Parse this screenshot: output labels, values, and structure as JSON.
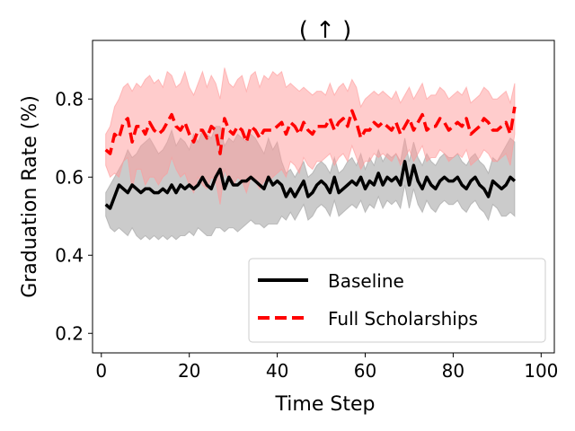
{
  "chart_data": {
    "type": "line",
    "title": "( ↑ )",
    "xlabel": "Time Step",
    "ylabel": "Graduation Rate (%)",
    "xlim": [
      -2,
      103
    ],
    "ylim": [
      0.15,
      0.95
    ],
    "xticks": [
      0,
      20,
      40,
      60,
      80,
      100
    ],
    "yticks": [
      0.2,
      0.4,
      0.6,
      0.8
    ],
    "xtick_labels": [
      "0",
      "20",
      "40",
      "60",
      "80",
      "100"
    ],
    "ytick_labels": [
      "0.2",
      "0.4",
      "0.6",
      "0.8"
    ],
    "grid": false,
    "legend_position": "lower-right",
    "colors": {
      "baseline": "#000000",
      "baseline_band": "#a0a0a0",
      "scholarship": "#ff0000",
      "scholarship_band": "#ff9a9a"
    },
    "series": [
      {
        "name": "Baseline",
        "style": "solid",
        "x": [
          1,
          2,
          3,
          4,
          5,
          6,
          7,
          8,
          9,
          10,
          11,
          12,
          13,
          14,
          15,
          16,
          17,
          18,
          19,
          20,
          21,
          22,
          23,
          24,
          25,
          26,
          27,
          28,
          29,
          30,
          31,
          32,
          33,
          34,
          35,
          36,
          37,
          38,
          39,
          40,
          41,
          42,
          43,
          44,
          45,
          46,
          47,
          48,
          49,
          50,
          51,
          52,
          53,
          54,
          55,
          56,
          57,
          58,
          59,
          60,
          61,
          62,
          63,
          64,
          65,
          66,
          67,
          68,
          69,
          70,
          71,
          72,
          73,
          74,
          75,
          76,
          77,
          78,
          79,
          80,
          81,
          82,
          83,
          84,
          85,
          86,
          87,
          88,
          89,
          90,
          91,
          92,
          93,
          94
        ],
        "values": [
          0.53,
          0.52,
          0.55,
          0.58,
          0.57,
          0.56,
          0.58,
          0.57,
          0.56,
          0.57,
          0.57,
          0.56,
          0.56,
          0.57,
          0.56,
          0.58,
          0.56,
          0.58,
          0.57,
          0.58,
          0.57,
          0.58,
          0.6,
          0.58,
          0.57,
          0.6,
          0.62,
          0.57,
          0.6,
          0.58,
          0.58,
          0.59,
          0.59,
          0.6,
          0.59,
          0.58,
          0.57,
          0.6,
          0.58,
          0.59,
          0.58,
          0.55,
          0.57,
          0.55,
          0.57,
          0.59,
          0.55,
          0.56,
          0.58,
          0.59,
          0.58,
          0.56,
          0.6,
          0.56,
          0.57,
          0.58,
          0.59,
          0.58,
          0.6,
          0.57,
          0.59,
          0.58,
          0.61,
          0.58,
          0.6,
          0.59,
          0.6,
          0.58,
          0.64,
          0.58,
          0.63,
          0.59,
          0.57,
          0.6,
          0.58,
          0.57,
          0.59,
          0.6,
          0.59,
          0.59,
          0.6,
          0.58,
          0.57,
          0.59,
          0.6,
          0.58,
          0.57,
          0.55,
          0.59,
          0.58,
          0.57,
          0.58,
          0.6,
          0.59
        ],
        "band_upper": [
          0.56,
          0.58,
          0.6,
          0.62,
          0.64,
          0.67,
          0.65,
          0.66,
          0.68,
          0.69,
          0.7,
          0.68,
          0.66,
          0.67,
          0.69,
          0.72,
          0.68,
          0.7,
          0.69,
          0.67,
          0.71,
          0.69,
          0.72,
          0.71,
          0.7,
          0.73,
          0.73,
          0.68,
          0.7,
          0.69,
          0.71,
          0.7,
          0.69,
          0.71,
          0.7,
          0.68,
          0.66,
          0.7,
          0.67,
          0.69,
          0.64,
          0.61,
          0.62,
          0.6,
          0.62,
          0.64,
          0.6,
          0.61,
          0.63,
          0.64,
          0.63,
          0.61,
          0.65,
          0.61,
          0.62,
          0.64,
          0.65,
          0.63,
          0.66,
          0.62,
          0.65,
          0.63,
          0.67,
          0.64,
          0.66,
          0.65,
          0.66,
          0.64,
          0.7,
          0.64,
          0.69,
          0.65,
          0.63,
          0.66,
          0.64,
          0.63,
          0.65,
          0.66,
          0.65,
          0.65,
          0.66,
          0.64,
          0.63,
          0.65,
          0.66,
          0.64,
          0.63,
          0.61,
          0.65,
          0.64,
          0.66,
          0.68,
          0.7,
          0.69
        ],
        "band_lower": [
          0.5,
          0.47,
          0.46,
          0.47,
          0.46,
          0.45,
          0.47,
          0.45,
          0.44,
          0.45,
          0.44,
          0.45,
          0.44,
          0.45,
          0.44,
          0.45,
          0.44,
          0.45,
          0.45,
          0.46,
          0.45,
          0.47,
          0.46,
          0.45,
          0.45,
          0.47,
          0.47,
          0.46,
          0.47,
          0.47,
          0.46,
          0.47,
          0.48,
          0.49,
          0.48,
          0.48,
          0.47,
          0.48,
          0.48,
          0.48,
          0.5,
          0.49,
          0.51,
          0.49,
          0.51,
          0.53,
          0.49,
          0.5,
          0.52,
          0.53,
          0.52,
          0.5,
          0.54,
          0.5,
          0.51,
          0.52,
          0.53,
          0.52,
          0.54,
          0.51,
          0.53,
          0.52,
          0.55,
          0.52,
          0.54,
          0.53,
          0.54,
          0.52,
          0.58,
          0.52,
          0.57,
          0.53,
          0.51,
          0.54,
          0.52,
          0.51,
          0.53,
          0.54,
          0.53,
          0.53,
          0.54,
          0.52,
          0.51,
          0.53,
          0.54,
          0.52,
          0.51,
          0.49,
          0.53,
          0.52,
          0.5,
          0.5,
          0.51,
          0.5
        ]
      },
      {
        "name": "Full Scholarships",
        "style": "dashed",
        "x": [
          1,
          2,
          3,
          4,
          5,
          6,
          7,
          8,
          9,
          10,
          11,
          12,
          13,
          14,
          15,
          16,
          17,
          18,
          19,
          20,
          21,
          22,
          23,
          24,
          25,
          26,
          27,
          28,
          29,
          30,
          31,
          32,
          33,
          34,
          35,
          36,
          37,
          38,
          39,
          40,
          41,
          42,
          43,
          44,
          45,
          46,
          47,
          48,
          49,
          50,
          51,
          52,
          53,
          54,
          55,
          56,
          57,
          58,
          59,
          60,
          61,
          62,
          63,
          64,
          65,
          66,
          67,
          68,
          69,
          70,
          71,
          72,
          73,
          74,
          75,
          76,
          77,
          78,
          79,
          80,
          81,
          82,
          83,
          84,
          85,
          86,
          87,
          88,
          89,
          90,
          91,
          92,
          93,
          94
        ],
        "values": [
          0.67,
          0.66,
          0.71,
          0.7,
          0.74,
          0.75,
          0.69,
          0.73,
          0.73,
          0.71,
          0.74,
          0.72,
          0.71,
          0.72,
          0.74,
          0.76,
          0.73,
          0.72,
          0.74,
          0.71,
          0.69,
          0.72,
          0.72,
          0.7,
          0.73,
          0.72,
          0.66,
          0.75,
          0.72,
          0.71,
          0.73,
          0.72,
          0.69,
          0.73,
          0.72,
          0.7,
          0.72,
          0.72,
          0.72,
          0.73,
          0.74,
          0.71,
          0.74,
          0.73,
          0.71,
          0.74,
          0.72,
          0.71,
          0.73,
          0.73,
          0.73,
          0.75,
          0.72,
          0.74,
          0.75,
          0.73,
          0.77,
          0.74,
          0.7,
          0.72,
          0.72,
          0.74,
          0.73,
          0.74,
          0.73,
          0.72,
          0.74,
          0.71,
          0.73,
          0.75,
          0.72,
          0.74,
          0.76,
          0.72,
          0.73,
          0.73,
          0.75,
          0.74,
          0.72,
          0.73,
          0.74,
          0.73,
          0.75,
          0.71,
          0.72,
          0.73,
          0.75,
          0.74,
          0.72,
          0.72,
          0.73,
          0.74,
          0.71,
          0.78
        ],
        "band_upper": [
          0.71,
          0.73,
          0.78,
          0.8,
          0.83,
          0.84,
          0.82,
          0.84,
          0.83,
          0.85,
          0.86,
          0.84,
          0.85,
          0.83,
          0.87,
          0.86,
          0.83,
          0.84,
          0.87,
          0.83,
          0.81,
          0.84,
          0.87,
          0.83,
          0.86,
          0.84,
          0.8,
          0.88,
          0.84,
          0.83,
          0.85,
          0.86,
          0.82,
          0.86,
          0.87,
          0.83,
          0.86,
          0.85,
          0.87,
          0.86,
          0.87,
          0.83,
          0.84,
          0.83,
          0.82,
          0.83,
          0.82,
          0.81,
          0.82,
          0.82,
          0.81,
          0.84,
          0.81,
          0.83,
          0.84,
          0.82,
          0.85,
          0.83,
          0.78,
          0.8,
          0.81,
          0.82,
          0.81,
          0.82,
          0.81,
          0.8,
          0.82,
          0.79,
          0.81,
          0.83,
          0.8,
          0.82,
          0.84,
          0.8,
          0.81,
          0.81,
          0.83,
          0.82,
          0.8,
          0.81,
          0.82,
          0.81,
          0.83,
          0.79,
          0.8,
          0.81,
          0.83,
          0.82,
          0.8,
          0.8,
          0.81,
          0.82,
          0.79,
          0.84
        ],
        "band_lower": [
          0.63,
          0.6,
          0.61,
          0.6,
          0.64,
          0.65,
          0.57,
          0.62,
          0.62,
          0.58,
          0.6,
          0.6,
          0.58,
          0.6,
          0.61,
          0.65,
          0.62,
          0.6,
          0.61,
          0.58,
          0.56,
          0.6,
          0.58,
          0.57,
          0.6,
          0.59,
          0.53,
          0.62,
          0.59,
          0.58,
          0.6,
          0.59,
          0.56,
          0.6,
          0.59,
          0.57,
          0.59,
          0.59,
          0.6,
          0.61,
          0.62,
          0.6,
          0.64,
          0.63,
          0.61,
          0.65,
          0.63,
          0.62,
          0.64,
          0.64,
          0.65,
          0.66,
          0.63,
          0.65,
          0.66,
          0.64,
          0.68,
          0.65,
          0.62,
          0.64,
          0.64,
          0.66,
          0.65,
          0.66,
          0.65,
          0.64,
          0.66,
          0.63,
          0.65,
          0.67,
          0.64,
          0.66,
          0.68,
          0.64,
          0.65,
          0.65,
          0.67,
          0.66,
          0.64,
          0.65,
          0.66,
          0.65,
          0.67,
          0.63,
          0.64,
          0.65,
          0.67,
          0.66,
          0.64,
          0.64,
          0.65,
          0.66,
          0.63,
          0.71
        ]
      }
    ]
  }
}
